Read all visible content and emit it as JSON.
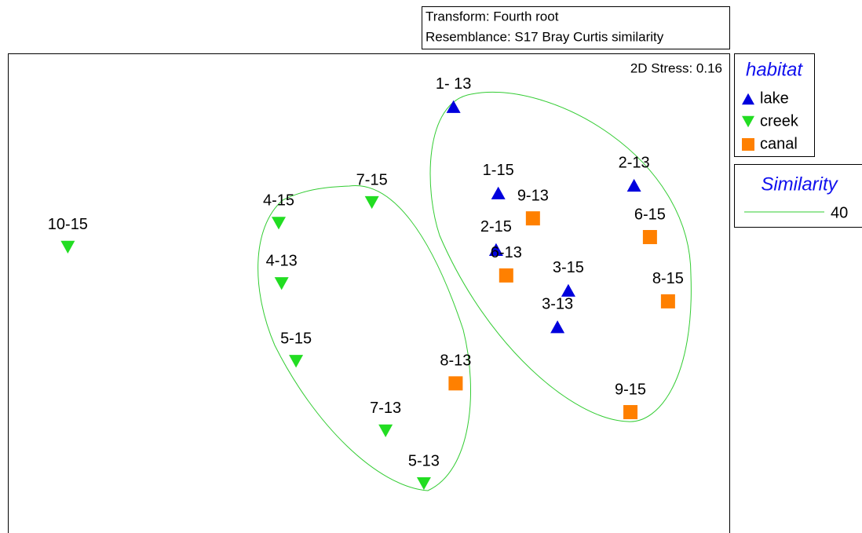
{
  "chart_data": {
    "type": "scatter",
    "annotations": [
      "Transform: Fourth root",
      "Resemblance: S17 Bray Curtis similarity",
      "2D Stress: 0.16"
    ],
    "legend_title": "habitat",
    "xlim": [
      0,
      100
    ],
    "ylim": [
      0,
      100
    ],
    "series": [
      {
        "name": "lake",
        "color": "#0000dd",
        "marker": "triangle-up",
        "labels": [
          "1- 13",
          "1-15",
          "2-13",
          "2-15",
          "3-15",
          "3-13"
        ],
        "x": [
          61.7,
          67.9,
          86.7,
          67.6,
          77.6,
          76.1
        ],
        "values": [
          88.9,
          70.9,
          72.5,
          59.1,
          50.6,
          43.0
        ]
      },
      {
        "name": "creek",
        "color": "#22dd22",
        "marker": "triangle-down",
        "labels": [
          "10-15",
          "4-15",
          "7-15",
          "4-13",
          "5-15",
          "7-13",
          "5-13"
        ],
        "x": [
          8.3,
          37.5,
          50.4,
          37.9,
          39.9,
          52.3,
          57.6
        ],
        "values": [
          59.6,
          64.6,
          68.9,
          52.0,
          35.8,
          21.3,
          10.3
        ]
      },
      {
        "name": "canal",
        "color": "#ff8000",
        "marker": "square",
        "labels": [
          "9-13",
          "6-13",
          "6-15",
          "8-15",
          "9-15",
          "8-13"
        ],
        "x": [
          72.7,
          69.0,
          88.9,
          91.4,
          86.2,
          62.0
        ],
        "values": [
          65.6,
          53.7,
          61.7,
          48.3,
          25.2,
          31.2
        ]
      }
    ],
    "contour": {
      "title": "Similarity",
      "level": 40,
      "color": "#33cc33"
    }
  }
}
